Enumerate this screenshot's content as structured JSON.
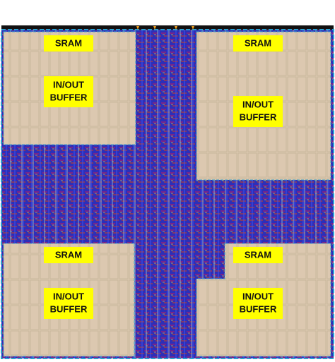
{
  "blocks": [
    {
      "sram": "SRAM",
      "buffer": [
        "IN/OUT",
        "BUFFER"
      ]
    },
    {
      "sram": "SRAM",
      "buffer": [
        "IN/OUT",
        "BUFFER"
      ]
    },
    {
      "sram": "SRAM",
      "buffer": [
        "IN/OUT",
        "BUFFER"
      ]
    },
    {
      "sram": "SRAM",
      "buffer": [
        "IN/OUT",
        "BUFFER"
      ]
    }
  ]
}
